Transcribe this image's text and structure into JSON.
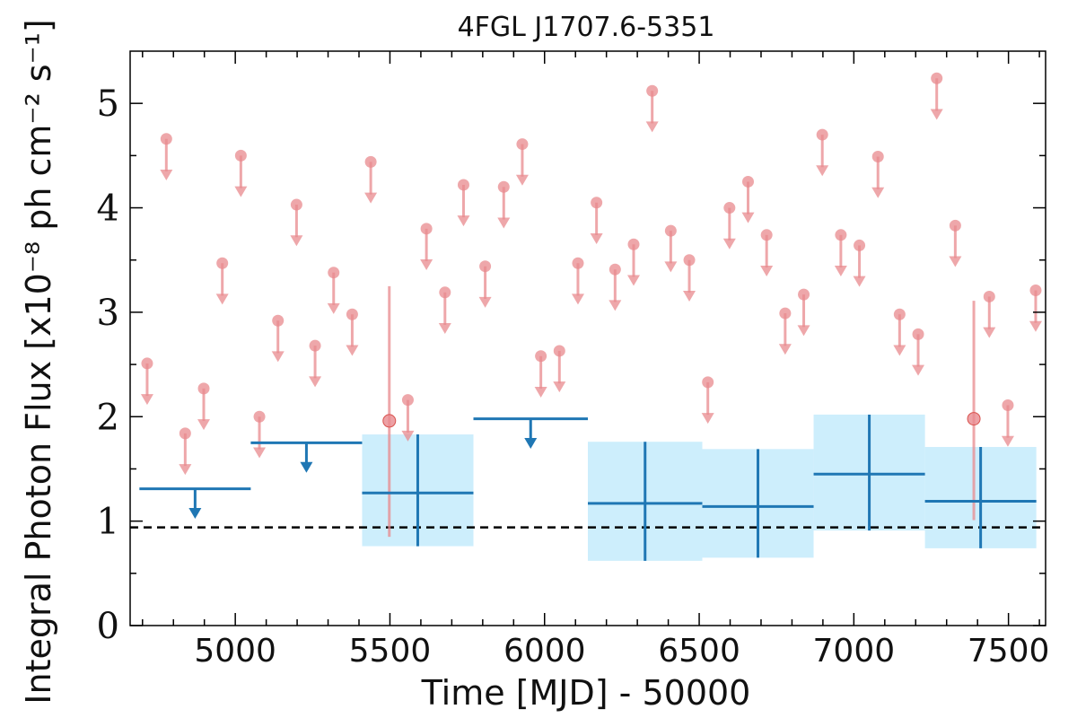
{
  "chart_data": {
    "type": "scatter",
    "title": "4FGL J1707.6-5351",
    "xlabel": "Time [MJD] - 50000",
    "ylabel": "Integral Photon Flux [x10⁻⁸ ph cm⁻² s⁻¹]",
    "xlim": [
      4660,
      7620
    ],
    "ylim": [
      0,
      5.5
    ],
    "xticks": [
      5000,
      5500,
      6000,
      6500,
      7000,
      7500
    ],
    "xtick_labels": [
      "5000",
      "5500",
      "6000",
      "6500",
      "7000",
      "7500"
    ],
    "yticks": [
      0,
      1,
      2,
      3,
      4,
      5
    ],
    "ytick_labels": [
      "0",
      "1",
      "2",
      "3",
      "4",
      "5"
    ],
    "grid": false,
    "reference_line": {
      "y": 0.94,
      "style": "dashed",
      "color": "#000000"
    },
    "colors": {
      "monthly": "#e8898e",
      "yearly": "#1f77b4",
      "band": "#cdeefc"
    },
    "series": [
      {
        "type": "upper_limits",
        "upper_limits": [
          {
            "x": 4715,
            "y": 2.51
          },
          {
            "x": 4777,
            "y": 4.66
          },
          {
            "x": 4838,
            "y": 1.84
          },
          {
            "x": 4898,
            "y": 2.27
          },
          {
            "x": 4958,
            "y": 3.47
          },
          {
            "x": 5018,
            "y": 4.5
          },
          {
            "x": 5078,
            "y": 2.0
          },
          {
            "x": 5138,
            "y": 2.92
          },
          {
            "x": 5198,
            "y": 4.03
          },
          {
            "x": 5258,
            "y": 2.68
          },
          {
            "x": 5318,
            "y": 3.38
          },
          {
            "x": 5378,
            "y": 2.98
          },
          {
            "x": 5438,
            "y": 4.44
          },
          {
            "x": 5558,
            "y": 2.16
          },
          {
            "x": 5618,
            "y": 3.8
          },
          {
            "x": 5678,
            "y": 3.19
          },
          {
            "x": 5738,
            "y": 4.22
          },
          {
            "x": 5808,
            "y": 3.44
          },
          {
            "x": 5868,
            "y": 4.2
          },
          {
            "x": 5928,
            "y": 4.61
          },
          {
            "x": 5988,
            "y": 2.58
          },
          {
            "x": 6048,
            "y": 2.63
          },
          {
            "x": 6108,
            "y": 3.47
          },
          {
            "x": 6168,
            "y": 4.05
          },
          {
            "x": 6228,
            "y": 3.41
          },
          {
            "x": 6288,
            "y": 3.65
          },
          {
            "x": 6348,
            "y": 5.12
          },
          {
            "x": 6408,
            "y": 3.78
          },
          {
            "x": 6468,
            "y": 3.5
          },
          {
            "x": 6528,
            "y": 2.33
          },
          {
            "x": 6598,
            "y": 4.0
          },
          {
            "x": 6658,
            "y": 4.25
          },
          {
            "x": 6718,
            "y": 3.74
          },
          {
            "x": 6778,
            "y": 2.99
          },
          {
            "x": 6838,
            "y": 3.17
          },
          {
            "x": 6898,
            "y": 4.7
          },
          {
            "x": 6958,
            "y": 3.74
          },
          {
            "x": 7018,
            "y": 3.64
          },
          {
            "x": 7078,
            "y": 4.49
          },
          {
            "x": 7148,
            "y": 2.98
          },
          {
            "x": 7208,
            "y": 2.79
          },
          {
            "x": 7268,
            "y": 5.24
          },
          {
            "x": 7328,
            "y": 3.83
          },
          {
            "x": 7438,
            "y": 3.15
          },
          {
            "x": 7498,
            "y": 2.11
          },
          {
            "x": 7588,
            "y": 3.21
          }
        ],
        "detections": [
          {
            "x": 5498,
            "y": 1.96,
            "yerr_low": 1.11,
            "yerr_high": 1.29
          },
          {
            "x": 7388,
            "y": 1.98,
            "yerr_low": 0.97,
            "yerr_high": 1.13
          }
        ]
      },
      {
        "type": "yearly_bins",
        "upper_limits": [
          {
            "x0": 4690,
            "x1": 5050,
            "y": 1.31
          },
          {
            "x0": 5050,
            "x1": 5410,
            "y": 1.75
          },
          {
            "x0": 5770,
            "x1": 6140,
            "y": 1.98
          }
        ],
        "detections": [
          {
            "x0": 5410,
            "x1": 5770,
            "x": 5590,
            "y": 1.27,
            "ylow": 0.76,
            "yhigh": 1.83
          },
          {
            "x0": 6140,
            "x1": 6510,
            "x": 6325,
            "y": 1.17,
            "ylow": 0.62,
            "yhigh": 1.76
          },
          {
            "x0": 6510,
            "x1": 6870,
            "x": 6690,
            "y": 1.14,
            "ylow": 0.65,
            "yhigh": 1.69
          },
          {
            "x0": 6870,
            "x1": 7230,
            "x": 7050,
            "y": 1.45,
            "ylow": 0.91,
            "yhigh": 2.02
          },
          {
            "x0": 7230,
            "x1": 7590,
            "x": 7410,
            "y": 1.19,
            "ylow": 0.74,
            "yhigh": 1.71
          }
        ]
      }
    ]
  }
}
